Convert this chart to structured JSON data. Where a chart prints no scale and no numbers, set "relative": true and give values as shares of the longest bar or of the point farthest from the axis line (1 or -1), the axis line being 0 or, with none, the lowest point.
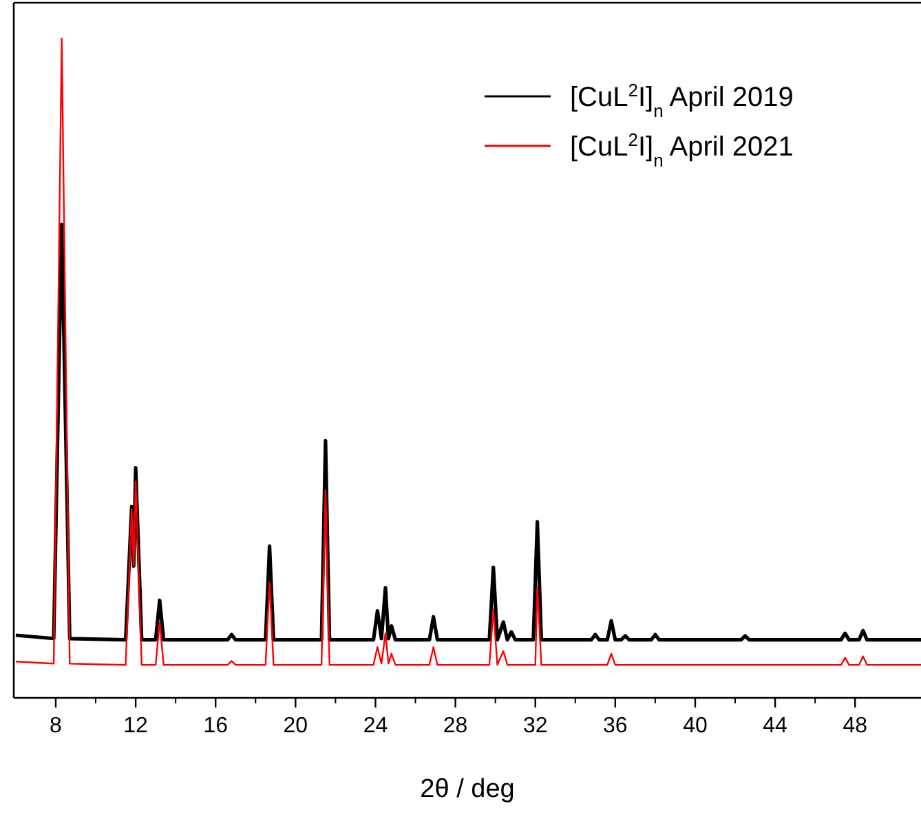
{
  "chart_data": {
    "type": "line",
    "relative": true,
    "xlabel": "2θ / deg",
    "xlim": [
      5.9,
      51.3
    ],
    "xticks": [
      8,
      12,
      16,
      20,
      24,
      28,
      32,
      36,
      40,
      44,
      48
    ],
    "legend": "top right",
    "line_style": "solid",
    "grid": false,
    "series": [
      {
        "name": "[CuL$^{2}$I]$_{n}$ April 2019",
        "color": "#000000",
        "x": [
          6,
          7.9,
          8.3,
          8.7,
          11.5,
          11.8,
          11.9,
          12.0,
          12.3,
          13.0,
          13.2,
          13.4,
          16.6,
          16.8,
          17.0,
          18.5,
          18.7,
          18.9,
          21.3,
          21.5,
          21.7,
          23.9,
          24.1,
          24.3,
          24.5,
          24.65,
          24.8,
          25.0,
          26.7,
          26.9,
          27.1,
          29.7,
          29.9,
          30.1,
          30.4,
          30.6,
          30.8,
          31.0,
          31.9,
          32.1,
          32.3,
          34.8,
          35.0,
          35.2,
          35.6,
          35.8,
          36.0,
          36.3,
          36.5,
          36.7,
          37.8,
          38.0,
          38.2,
          42.3,
          42.5,
          42.7,
          47.3,
          47.5,
          47.7,
          48.2,
          48.4,
          48.6,
          51.3
        ],
        "values": [
          0.095,
          0.09,
          0.718,
          0.09,
          0.088,
          0.29,
          0.2,
          0.349,
          0.088,
          0.088,
          0.148,
          0.088,
          0.088,
          0.096,
          0.088,
          0.088,
          0.23,
          0.088,
          0.088,
          0.39,
          0.088,
          0.088,
          0.132,
          0.09,
          0.167,
          0.09,
          0.109,
          0.088,
          0.088,
          0.123,
          0.088,
          0.088,
          0.198,
          0.088,
          0.115,
          0.088,
          0.1,
          0.088,
          0.088,
          0.267,
          0.088,
          0.088,
          0.096,
          0.088,
          0.088,
          0.117,
          0.088,
          0.088,
          0.094,
          0.088,
          0.088,
          0.096,
          0.088,
          0.088,
          0.094,
          0.088,
          0.088,
          0.098,
          0.088,
          0.088,
          0.102,
          0.088,
          0.088
        ]
      },
      {
        "name": "[CuL$^{2}$I]$_{n}$ April 2021",
        "color": "#ff0000",
        "x": [
          6,
          7.9,
          8.3,
          8.7,
          11.5,
          11.8,
          11.9,
          12.0,
          12.3,
          13.0,
          13.2,
          13.4,
          16.6,
          16.8,
          17.0,
          18.5,
          18.7,
          18.9,
          21.3,
          21.5,
          21.7,
          23.9,
          24.1,
          24.3,
          24.5,
          24.65,
          24.8,
          25.0,
          26.7,
          26.9,
          27.1,
          29.7,
          29.9,
          30.1,
          30.4,
          30.6,
          32.0,
          32.1,
          32.3,
          35.6,
          35.8,
          36.0,
          47.3,
          47.5,
          47.7,
          48.2,
          48.4,
          48.6,
          51.3
        ],
        "values": [
          0.055,
          0.052,
          1,
          0.052,
          0.05,
          0.286,
          0.2,
          0.328,
          0.05,
          0.05,
          0.115,
          0.05,
          0.05,
          0.056,
          0.05,
          0.05,
          0.175,
          0.05,
          0.05,
          0.315,
          0.05,
          0.05,
          0.077,
          0.052,
          0.098,
          0.052,
          0.067,
          0.05,
          0.05,
          0.077,
          0.05,
          0.05,
          0.134,
          0.05,
          0.071,
          0.05,
          0.05,
          0.169,
          0.05,
          0.05,
          0.067,
          0.05,
          0.05,
          0.061,
          0.05,
          0.05,
          0.063,
          0.05,
          0.05
        ]
      }
    ]
  }
}
